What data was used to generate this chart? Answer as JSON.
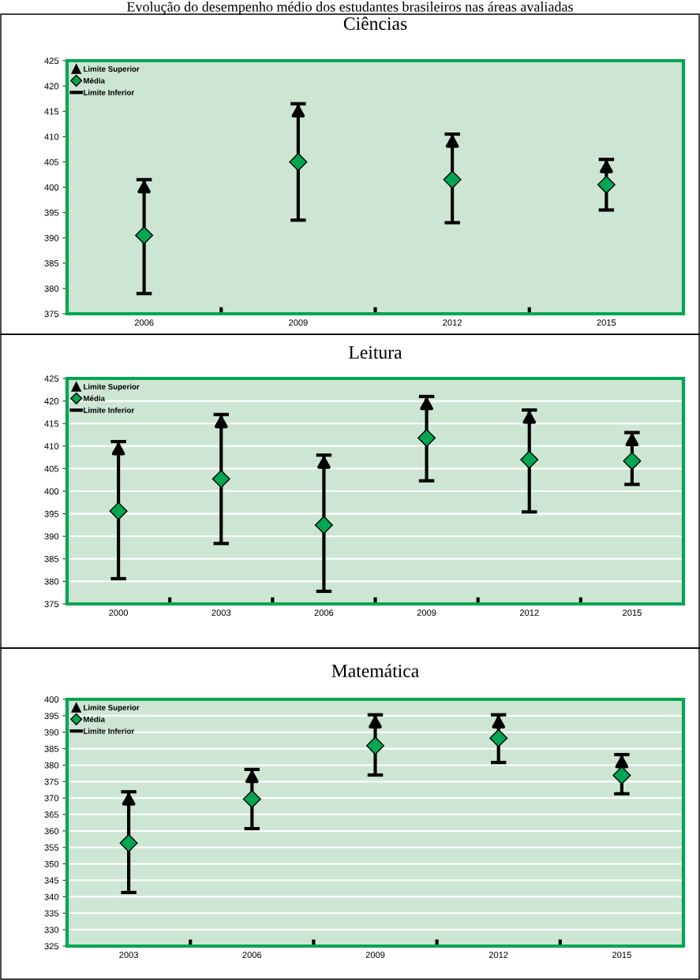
{
  "chart_data": [
    {
      "type": "scatter",
      "title": "Evolução do desempenho médio dos estudantes brasileiros nas áreas avaliadas",
      "subtitle": "Ciências",
      "annotations": [
        "Limite Superior",
        "Limite Inferior"
      ],
      "categories": [
        "2006",
        "2009",
        "2012",
        "2015"
      ],
      "ylim": [
        375,
        425
      ],
      "yticks": [
        375,
        380,
        385,
        390,
        395,
        400,
        405,
        410,
        415,
        420,
        425
      ],
      "grid": false,
      "legend": "top left",
      "marker": "diamond",
      "series": [
        {
          "name": "Média",
          "color": "#00a651",
          "values": [
            390.5,
            405,
            401.5,
            400.5
          ],
          "errors": [
            [
              379,
              401.5
            ],
            [
              393.5,
              416.5
            ],
            [
              393,
              410.5
            ],
            [
              395.5,
              405.5
            ]
          ]
        }
      ]
    },
    {
      "type": "scatter",
      "title": "Leitura",
      "annotations": [
        "Limite Superior",
        "Limite Inferior"
      ],
      "categories": [
        "2000",
        "2003",
        "2006",
        "2009",
        "2012",
        "2015"
      ],
      "ylim": [
        375,
        425
      ],
      "yticks": [
        375,
        380,
        385,
        390,
        395,
        400,
        405,
        410,
        415,
        420,
        425
      ],
      "grid": "y",
      "legend": "top left",
      "marker": "diamond",
      "series": [
        {
          "name": "Média",
          "color": "#00a651",
          "values": [
            395.6,
            402.7,
            392.5,
            411.8,
            407,
            406.7
          ],
          "errors": [
            [
              380.6,
              411
            ],
            [
              388.4,
              417
            ],
            [
              377.8,
              408
            ],
            [
              402.3,
              421
            ],
            [
              395.4,
              418
            ],
            [
              401.5,
              413
            ]
          ]
        }
      ]
    },
    {
      "type": "scatter",
      "title": "Matemática",
      "annotations": [
        "Limite Superior",
        "Limite Inferior"
      ],
      "categories": [
        "2003",
        "2006",
        "2009",
        "2012",
        "2015"
      ],
      "ylim": [
        325,
        400
      ],
      "yticks": [
        325,
        330,
        335,
        340,
        345,
        350,
        355,
        360,
        365,
        370,
        375,
        380,
        385,
        390,
        395,
        400
      ],
      "grid": "y",
      "legend": "top left",
      "marker": "diamond",
      "series": [
        {
          "name": "Média",
          "color": "#00a651",
          "values": [
            356.3,
            369.7,
            385.9,
            388.2,
            376.9
          ],
          "errors": [
            [
              341.3,
              371.9
            ],
            [
              360.7,
              378.7
            ],
            [
              377,
              395.3
            ],
            [
              380.8,
              395.3
            ],
            [
              371.3,
              383.2
            ]
          ]
        }
      ]
    }
  ]
}
